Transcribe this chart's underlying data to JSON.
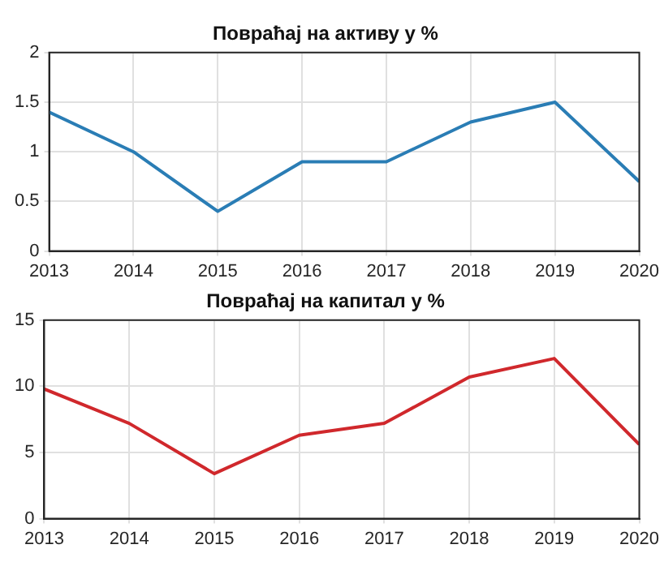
{
  "chart_data": [
    {
      "type": "line",
      "title": "Повраћај на активу у %",
      "x": [
        2013,
        2014,
        2015,
        2016,
        2017,
        2018,
        2019,
        2020
      ],
      "series": [
        {
          "color": "#2a7db5",
          "values": [
            1.4,
            1.0,
            0.4,
            0.9,
            0.9,
            1.3,
            1.5,
            0.7
          ]
        }
      ],
      "xlim": [
        2013,
        2020
      ],
      "xticks": [
        2013,
        2014,
        2015,
        2016,
        2017,
        2018,
        2019,
        2020
      ],
      "ylim": [
        0,
        2
      ],
      "yticks": [
        0,
        0.5,
        1,
        1.5,
        2
      ],
      "grid": true,
      "legend": false,
      "marker": "none",
      "line_style": "solid"
    },
    {
      "type": "line",
      "title": "Повраћај на капитал у %",
      "x": [
        2013,
        2014,
        2015,
        2016,
        2017,
        2018,
        2019,
        2020
      ],
      "series": [
        {
          "color": "#d0282c",
          "values": [
            9.8,
            7.2,
            3.4,
            6.3,
            7.2,
            10.7,
            12.1,
            5.6
          ]
        }
      ],
      "xlim": [
        2013,
        2020
      ],
      "xticks": [
        2013,
        2014,
        2015,
        2016,
        2017,
        2018,
        2019,
        2020
      ],
      "ylim": [
        0,
        15
      ],
      "yticks": [
        0,
        5,
        10,
        15
      ],
      "grid": true,
      "legend": false,
      "marker": "none",
      "line_style": "solid"
    }
  ]
}
